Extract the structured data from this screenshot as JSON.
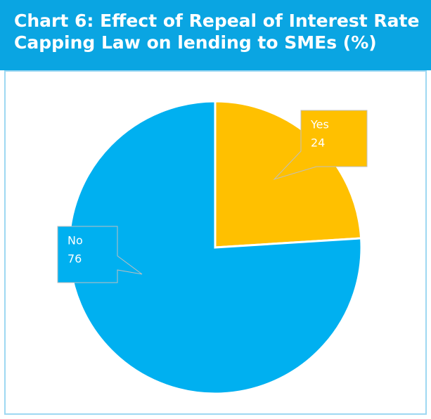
{
  "chart_data": {
    "type": "pie",
    "title": "Chart 6: Effect of Repeal of Interest Rate Capping Law on lending to SMEs (%)",
    "categories": [
      "Yes",
      "No"
    ],
    "values": [
      24,
      76
    ],
    "colors": [
      "#FFC000",
      "#00B0F0"
    ]
  }
}
